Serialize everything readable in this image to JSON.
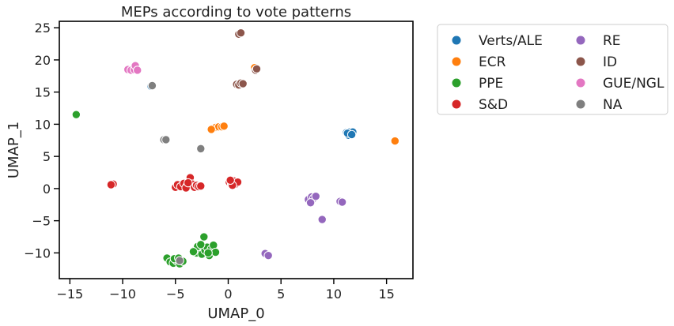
{
  "chart_data": {
    "type": "scatter",
    "title": "MEPs according to vote patterns",
    "xlabel": "UMAP_0",
    "ylabel": "UMAP_1",
    "xlim": [
      -16,
      17.5
    ],
    "ylim": [
      -14,
      26
    ],
    "xticks": [
      -15,
      -10,
      -5,
      0,
      5,
      10,
      15
    ],
    "yticks": [
      -10,
      -5,
      0,
      5,
      10,
      15,
      20,
      25
    ],
    "grid": false,
    "legend_position": "outside-right",
    "legend_columns": 2,
    "series": [
      {
        "name": "Verts/ALE",
        "color": "#1f77b4",
        "points": [
          [
            11.2,
            8.7
          ],
          [
            11.4,
            8.3
          ],
          [
            11.5,
            8.8
          ],
          [
            11.6,
            8.5
          ],
          [
            11.8,
            8.8
          ],
          [
            11.3,
            8.6
          ],
          [
            11.7,
            8.4
          ],
          [
            -7.3,
            15.9
          ]
        ]
      },
      {
        "name": "ECR",
        "color": "#ff7f0e",
        "points": [
          [
            15.8,
            7.4
          ],
          [
            -1.4,
            9.4
          ],
          [
            -1.2,
            9.5
          ],
          [
            -0.9,
            9.6
          ],
          [
            -0.6,
            9.6
          ],
          [
            -0.4,
            9.7
          ],
          [
            -1.6,
            9.2
          ],
          [
            2.5,
            18.8
          ]
        ]
      },
      {
        "name": "PPE",
        "color": "#2ca02c",
        "points": [
          [
            -14.4,
            11.5
          ],
          [
            -5.8,
            -10.8
          ],
          [
            -5.5,
            -11.4
          ],
          [
            -5.2,
            -11.6
          ],
          [
            -4.9,
            -11.2
          ],
          [
            -4.6,
            -11.7
          ],
          [
            -4.3,
            -11.3
          ],
          [
            -5.1,
            -10.9
          ],
          [
            -4.7,
            -10.8
          ],
          [
            -3.2,
            -9.6
          ],
          [
            -3.0,
            -10.0
          ],
          [
            -2.7,
            -9.3
          ],
          [
            -2.5,
            -10.2
          ],
          [
            -2.2,
            -9.6
          ],
          [
            -2.0,
            -9.1
          ],
          [
            -1.8,
            -10.4
          ],
          [
            -1.6,
            -9.4
          ],
          [
            -1.4,
            -8.8
          ],
          [
            -1.2,
            -9.9
          ],
          [
            -2.3,
            -7.5
          ],
          [
            -2.9,
            -9.0
          ],
          [
            -2.6,
            -8.7
          ],
          [
            -3.3,
            -9.8
          ],
          [
            -1.9,
            -10.0
          ]
        ]
      },
      {
        "name": "S&D",
        "color": "#d62728",
        "points": [
          [
            -10.9,
            0.7
          ],
          [
            -11.1,
            0.6
          ],
          [
            -5.0,
            0.2
          ],
          [
            -4.8,
            0.6
          ],
          [
            -4.5,
            0.3
          ],
          [
            -4.2,
            0.8
          ],
          [
            -3.9,
            0.4
          ],
          [
            -3.7,
            1.2
          ],
          [
            -3.6,
            1.7
          ],
          [
            -3.4,
            0.7
          ],
          [
            -3.2,
            0.2
          ],
          [
            -3.0,
            0.5
          ],
          [
            -2.8,
            0.3
          ],
          [
            -4.0,
            0.1
          ],
          [
            -3.8,
            0.9
          ],
          [
            -2.6,
            0.4
          ],
          [
            0.1,
            1.0
          ],
          [
            0.3,
            0.8
          ],
          [
            0.5,
            1.2
          ],
          [
            0.7,
            0.7
          ],
          [
            0.9,
            1.0
          ],
          [
            0.4,
            0.5
          ],
          [
            0.2,
            1.3
          ]
        ]
      },
      {
        "name": "RE",
        "color": "#9467bd",
        "points": [
          [
            7.6,
            -1.7
          ],
          [
            7.9,
            -1.3
          ],
          [
            8.1,
            -1.5
          ],
          [
            8.3,
            -1.2
          ],
          [
            7.8,
            -2.2
          ],
          [
            10.6,
            -2.0
          ],
          [
            10.8,
            -2.1
          ],
          [
            8.9,
            -4.8
          ],
          [
            3.5,
            -10.1
          ],
          [
            3.8,
            -10.4
          ]
        ]
      },
      {
        "name": "ID",
        "color": "#8c564b",
        "points": [
          [
            1.0,
            24.0
          ],
          [
            1.2,
            24.2
          ],
          [
            0.8,
            16.2
          ],
          [
            1.0,
            16.1
          ],
          [
            1.2,
            16.4
          ],
          [
            1.4,
            16.3
          ],
          [
            2.6,
            18.4
          ],
          [
            2.7,
            18.6
          ]
        ]
      },
      {
        "name": "GUE/NGL",
        "color": "#e377c2",
        "points": [
          [
            -9.5,
            18.5
          ],
          [
            -9.2,
            18.4
          ],
          [
            -8.9,
            18.5
          ],
          [
            -8.8,
            19.1
          ],
          [
            -8.6,
            18.4
          ]
        ]
      },
      {
        "name": "NA",
        "color": "#7f7f7f",
        "points": [
          [
            -6.1,
            7.6
          ],
          [
            -5.9,
            7.6
          ],
          [
            -2.6,
            6.2
          ],
          [
            -4.6,
            -11.2
          ],
          [
            -7.2,
            16.0
          ]
        ]
      }
    ]
  }
}
